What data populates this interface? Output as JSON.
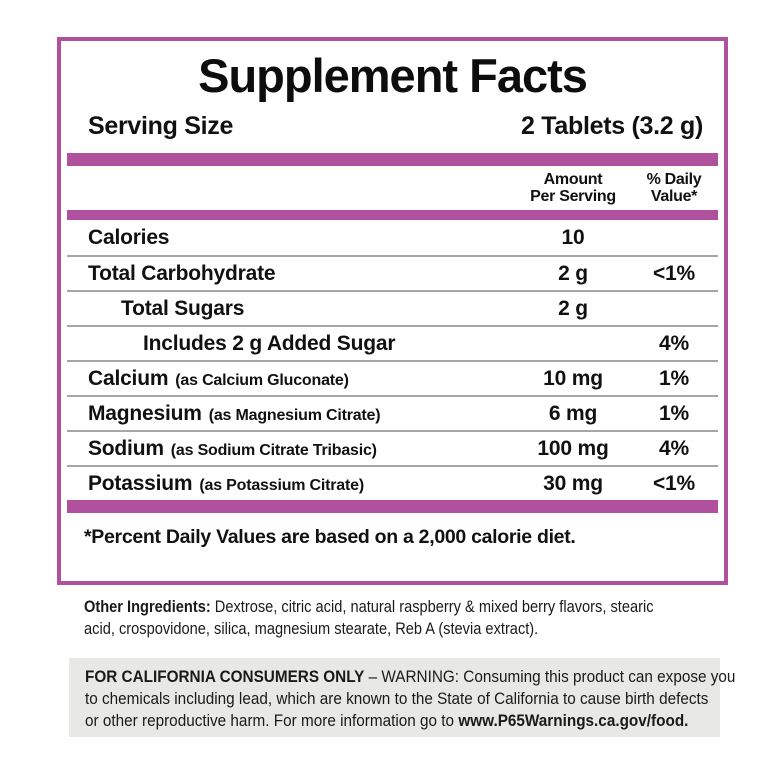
{
  "panel": {
    "title": "Supplement Facts",
    "serving_size_label": "Serving Size",
    "serving_size_value": "2 Tablets (3.2 g)",
    "footnote": "*Percent Daily Values are based on a 2,000 calorie diet."
  },
  "table": {
    "header": {
      "amount_line1": "Amount",
      "amount_line2": "Per Serving",
      "dv_line1": "% Daily",
      "dv_line2": "Value*"
    },
    "rows": [
      {
        "label": "Calories",
        "source": "",
        "amount": "10",
        "daily_value": ""
      },
      {
        "label": "Total Carbohydrate",
        "source": "",
        "amount": "2 g",
        "daily_value": "<1%"
      },
      {
        "label": "Total Sugars",
        "source": "",
        "amount": "2 g",
        "daily_value": ""
      },
      {
        "label": "Includes 2 g Added Sugar",
        "source": "",
        "amount": "",
        "daily_value": "4%"
      },
      {
        "label": "Calcium",
        "source": "(as Calcium Gluconate)",
        "amount": "10 mg",
        "daily_value": "1%"
      },
      {
        "label": "Magnesium",
        "source": "(as Magnesium Citrate)",
        "amount": "6 mg",
        "daily_value": "1%"
      },
      {
        "label": "Sodium",
        "source": "(as Sodium Citrate Tribasic)",
        "amount": "100 mg",
        "daily_value": "4%"
      },
      {
        "label": "Potassium",
        "source": "(as Potassium Citrate)",
        "amount": "30 mg",
        "daily_value": "<1%"
      }
    ]
  },
  "other_ingredients": {
    "label": "Other Ingredients:",
    "line1_rest": " Dextrose, citric acid, natural raspberry & mixed berry flavors, stearic",
    "line2": "acid, crospovidone, silica, magnesium stearate, Reb A (stevia extract)."
  },
  "california_warning": {
    "line1_bold": "FOR CALIFORNIA CONSUMERS ONLY",
    "line1_rest": " – WARNING: Consuming this product can expose you",
    "line2": "to chemicals including lead, which are known to the State of California to cause birth defects",
    "line3_rest": "or other reproductive harm. For more information go to ",
    "line3_bold": "www.P65Warnings.ca.gov/food."
  },
  "colors": {
    "accent_magenta": "#b0519d",
    "separator_gray": "#a6a6a6",
    "warning_box_bg": "#e8e8e7",
    "text": "#111111"
  }
}
